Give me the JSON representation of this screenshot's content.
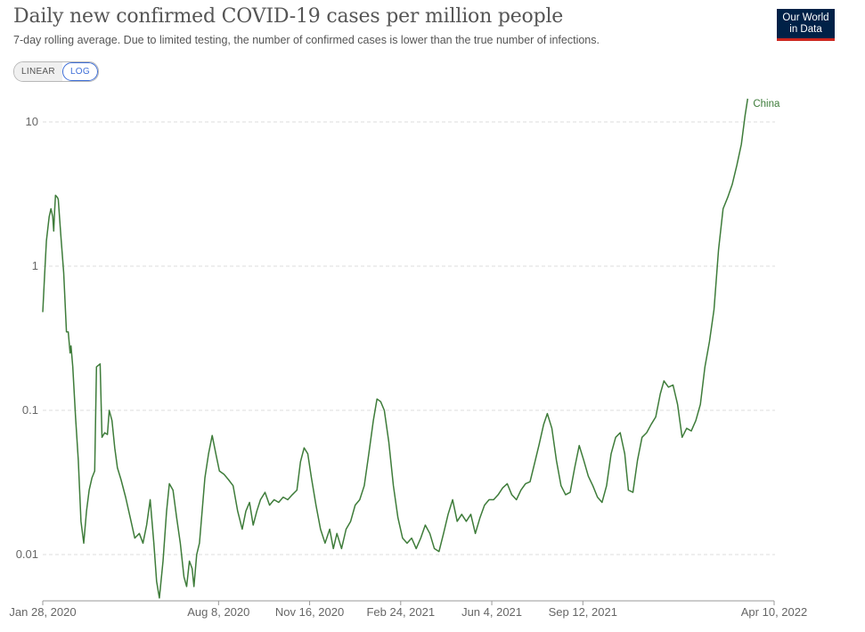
{
  "header": {
    "title": "Daily new confirmed COVID-19 cases per million people",
    "subtitle": "7-day rolling average. Due to limited testing, the number of confirmed cases is lower than the true number of infections.",
    "logo_line1": "Our World",
    "logo_line2": "in Data"
  },
  "scale_toggle": {
    "linear_label": "LINEAR",
    "log_label": "LOG",
    "selected": "LOG"
  },
  "colors": {
    "series": "#3e7c3a",
    "grid": "#dddddd",
    "axis": "#999999",
    "logo_bg": "#002147",
    "logo_accent": "#ce261e",
    "toggle_active": "#3f6fd8"
  },
  "chart_data": {
    "type": "line",
    "title": "Daily new confirmed COVID-19 cases per million people",
    "subtitle": "7-day rolling average. Due to limited testing, the number of confirmed cases is lower than the true number of infections.",
    "y_scale": "log",
    "y_ticks": [
      {
        "value": 0.01,
        "label": "0.01"
      },
      {
        "value": 0.1,
        "label": "0.1"
      },
      {
        "value": 1,
        "label": "1"
      },
      {
        "value": 10,
        "label": "10"
      }
    ],
    "x_ticks": [
      {
        "date": "2020-01-28",
        "label": "Jan 28, 2020"
      },
      {
        "date": "2020-08-08",
        "label": "Aug 8, 2020"
      },
      {
        "date": "2020-11-16",
        "label": "Nov 16, 2020"
      },
      {
        "date": "2021-02-24",
        "label": "Feb 24, 2021"
      },
      {
        "date": "2021-06-04",
        "label": "Jun 4, 2021"
      },
      {
        "date": "2021-09-12",
        "label": "Sep 12, 2021"
      },
      {
        "date": "2022-04-10",
        "label": "Apr 10, 2022"
      }
    ],
    "x_range": [
      "2020-01-28",
      "2022-04-10"
    ],
    "grid": "horizontal dashed",
    "series": [
      {
        "name": "China",
        "color": "#3e7c3a",
        "points": [
          [
            "2020-01-28",
            0.48
          ],
          [
            "2020-01-30",
            0.85
          ],
          [
            "2020-02-01",
            1.5
          ],
          [
            "2020-02-04",
            2.2
          ],
          [
            "2020-02-06",
            2.5
          ],
          [
            "2020-02-08",
            2.2
          ],
          [
            "2020-02-09",
            1.75
          ],
          [
            "2020-02-10",
            2.4
          ],
          [
            "2020-02-11",
            3.1
          ],
          [
            "2020-02-13",
            3.0
          ],
          [
            "2020-02-14",
            2.9
          ],
          [
            "2020-02-17",
            1.6
          ],
          [
            "2020-02-20",
            0.9
          ],
          [
            "2020-02-23",
            0.35
          ],
          [
            "2020-02-25",
            0.35
          ],
          [
            "2020-02-27",
            0.25
          ],
          [
            "2020-02-28",
            0.28
          ],
          [
            "2020-03-01",
            0.2
          ],
          [
            "2020-03-04",
            0.09
          ],
          [
            "2020-03-07",
            0.045
          ],
          [
            "2020-03-10",
            0.017
          ],
          [
            "2020-03-13",
            0.012
          ],
          [
            "2020-03-16",
            0.02
          ],
          [
            "2020-03-19",
            0.028
          ],
          [
            "2020-03-22",
            0.034
          ],
          [
            "2020-03-25",
            0.038
          ],
          [
            "2020-03-27",
            0.2
          ],
          [
            "2020-03-31",
            0.21
          ],
          [
            "2020-04-02",
            0.065
          ],
          [
            "2020-04-05",
            0.07
          ],
          [
            "2020-04-08",
            0.068
          ],
          [
            "2020-04-10",
            0.1
          ],
          [
            "2020-04-13",
            0.085
          ],
          [
            "2020-04-16",
            0.055
          ],
          [
            "2020-04-19",
            0.04
          ],
          [
            "2020-04-23",
            0.033
          ],
          [
            "2020-04-28",
            0.025
          ],
          [
            "2020-05-03",
            0.018
          ],
          [
            "2020-05-08",
            0.013
          ],
          [
            "2020-05-13",
            0.014
          ],
          [
            "2020-05-17",
            0.012
          ],
          [
            "2020-05-21",
            0.016
          ],
          [
            "2020-05-25",
            0.024
          ],
          [
            "2020-05-29",
            0.012
          ],
          [
            "2020-06-01",
            0.0065
          ],
          [
            "2020-06-04",
            0.005
          ],
          [
            "2020-06-08",
            0.009
          ],
          [
            "2020-06-12",
            0.02
          ],
          [
            "2020-06-15",
            0.031
          ],
          [
            "2020-06-19",
            0.028
          ],
          [
            "2020-06-23",
            0.018
          ],
          [
            "2020-06-27",
            0.012
          ],
          [
            "2020-07-01",
            0.007
          ],
          [
            "2020-07-04",
            0.006
          ],
          [
            "2020-07-07",
            0.009
          ],
          [
            "2020-07-10",
            0.008
          ],
          [
            "2020-07-12",
            0.006
          ],
          [
            "2020-07-15",
            0.01
          ],
          [
            "2020-07-18",
            0.012
          ],
          [
            "2020-07-21",
            0.02
          ],
          [
            "2020-07-24",
            0.034
          ],
          [
            "2020-07-28",
            0.05
          ],
          [
            "2020-08-01",
            0.067
          ],
          [
            "2020-08-05",
            0.05
          ],
          [
            "2020-08-09",
            0.038
          ],
          [
            "2020-08-14",
            0.036
          ],
          [
            "2020-08-19",
            0.033
          ],
          [
            "2020-08-24",
            0.03
          ],
          [
            "2020-08-29",
            0.02
          ],
          [
            "2020-09-03",
            0.015
          ],
          [
            "2020-09-07",
            0.02
          ],
          [
            "2020-09-11",
            0.023
          ],
          [
            "2020-09-15",
            0.016
          ],
          [
            "2020-09-19",
            0.02
          ],
          [
            "2020-09-23",
            0.024
          ],
          [
            "2020-09-28",
            0.027
          ],
          [
            "2020-10-03",
            0.022
          ],
          [
            "2020-10-08",
            0.024
          ],
          [
            "2020-10-13",
            0.023
          ],
          [
            "2020-10-18",
            0.025
          ],
          [
            "2020-10-23",
            0.024
          ],
          [
            "2020-10-28",
            0.026
          ],
          [
            "2020-11-02",
            0.028
          ],
          [
            "2020-11-06",
            0.044
          ],
          [
            "2020-11-10",
            0.055
          ],
          [
            "2020-11-14",
            0.05
          ],
          [
            "2020-11-18",
            0.034
          ],
          [
            "2020-11-23",
            0.022
          ],
          [
            "2020-11-28",
            0.015
          ],
          [
            "2020-12-03",
            0.012
          ],
          [
            "2020-12-08",
            0.015
          ],
          [
            "2020-12-12",
            0.011
          ],
          [
            "2020-12-16",
            0.014
          ],
          [
            "2020-12-21",
            0.011
          ],
          [
            "2020-12-26",
            0.015
          ],
          [
            "2020-12-31",
            0.017
          ],
          [
            "2021-01-05",
            0.022
          ],
          [
            "2021-01-10",
            0.024
          ],
          [
            "2021-01-15",
            0.03
          ],
          [
            "2021-01-20",
            0.05
          ],
          [
            "2021-01-25",
            0.085
          ],
          [
            "2021-01-29",
            0.12
          ],
          [
            "2021-02-02",
            0.115
          ],
          [
            "2021-02-06",
            0.1
          ],
          [
            "2021-02-11",
            0.06
          ],
          [
            "2021-02-16",
            0.03
          ],
          [
            "2021-02-21",
            0.018
          ],
          [
            "2021-02-26",
            0.013
          ],
          [
            "2021-03-03",
            0.012
          ],
          [
            "2021-03-08",
            0.013
          ],
          [
            "2021-03-13",
            0.011
          ],
          [
            "2021-03-18",
            0.013
          ],
          [
            "2021-03-23",
            0.016
          ],
          [
            "2021-03-28",
            0.014
          ],
          [
            "2021-04-02",
            0.011
          ],
          [
            "2021-04-07",
            0.0105
          ],
          [
            "2021-04-12",
            0.014
          ],
          [
            "2021-04-17",
            0.019
          ],
          [
            "2021-04-22",
            0.024
          ],
          [
            "2021-04-27",
            0.017
          ],
          [
            "2021-05-02",
            0.019
          ],
          [
            "2021-05-07",
            0.017
          ],
          [
            "2021-05-12",
            0.019
          ],
          [
            "2021-05-17",
            0.014
          ],
          [
            "2021-05-22",
            0.018
          ],
          [
            "2021-05-27",
            0.022
          ],
          [
            "2021-06-01",
            0.024
          ],
          [
            "2021-06-06",
            0.024
          ],
          [
            "2021-06-11",
            0.026
          ],
          [
            "2021-06-16",
            0.029
          ],
          [
            "2021-06-21",
            0.031
          ],
          [
            "2021-06-26",
            0.026
          ],
          [
            "2021-07-01",
            0.024
          ],
          [
            "2021-07-06",
            0.028
          ],
          [
            "2021-07-11",
            0.031
          ],
          [
            "2021-07-16",
            0.032
          ],
          [
            "2021-07-21",
            0.043
          ],
          [
            "2021-07-26",
            0.058
          ],
          [
            "2021-07-31",
            0.08
          ],
          [
            "2021-08-04",
            0.095
          ],
          [
            "2021-08-09",
            0.075
          ],
          [
            "2021-08-14",
            0.045
          ],
          [
            "2021-08-19",
            0.03
          ],
          [
            "2021-08-24",
            0.026
          ],
          [
            "2021-08-29",
            0.027
          ],
          [
            "2021-09-03",
            0.04
          ],
          [
            "2021-09-08",
            0.057
          ],
          [
            "2021-09-13",
            0.045
          ],
          [
            "2021-09-18",
            0.035
          ],
          [
            "2021-09-23",
            0.03
          ],
          [
            "2021-09-28",
            0.025
          ],
          [
            "2021-10-03",
            0.023
          ],
          [
            "2021-10-08",
            0.03
          ],
          [
            "2021-10-13",
            0.05
          ],
          [
            "2021-10-18",
            0.065
          ],
          [
            "2021-10-23",
            0.07
          ],
          [
            "2021-10-28",
            0.05
          ],
          [
            "2021-11-01",
            0.028
          ],
          [
            "2021-11-06",
            0.027
          ],
          [
            "2021-11-11",
            0.045
          ],
          [
            "2021-11-16",
            0.065
          ],
          [
            "2021-11-21",
            0.07
          ],
          [
            "2021-11-26",
            0.08
          ],
          [
            "2021-12-01",
            0.09
          ],
          [
            "2021-12-06",
            0.13
          ],
          [
            "2021-12-10",
            0.16
          ],
          [
            "2021-12-15",
            0.145
          ],
          [
            "2021-12-20",
            0.15
          ],
          [
            "2021-12-25",
            0.11
          ],
          [
            "2021-12-30",
            0.065
          ],
          [
            "2022-01-04",
            0.075
          ],
          [
            "2022-01-09",
            0.072
          ],
          [
            "2022-01-14",
            0.085
          ],
          [
            "2022-01-19",
            0.11
          ],
          [
            "2022-01-24",
            0.2
          ],
          [
            "2022-01-29",
            0.3
          ],
          [
            "2022-02-03",
            0.5
          ],
          [
            "2022-02-08",
            1.3
          ],
          [
            "2022-02-13",
            2.5
          ],
          [
            "2022-02-18",
            3.0
          ],
          [
            "2022-02-23",
            3.7
          ],
          [
            "2022-02-28",
            5.0
          ],
          [
            "2022-03-05",
            7.0
          ],
          [
            "2022-03-09",
            11.0
          ],
          [
            "2022-03-12",
            14.5
          ]
        ]
      }
    ]
  }
}
